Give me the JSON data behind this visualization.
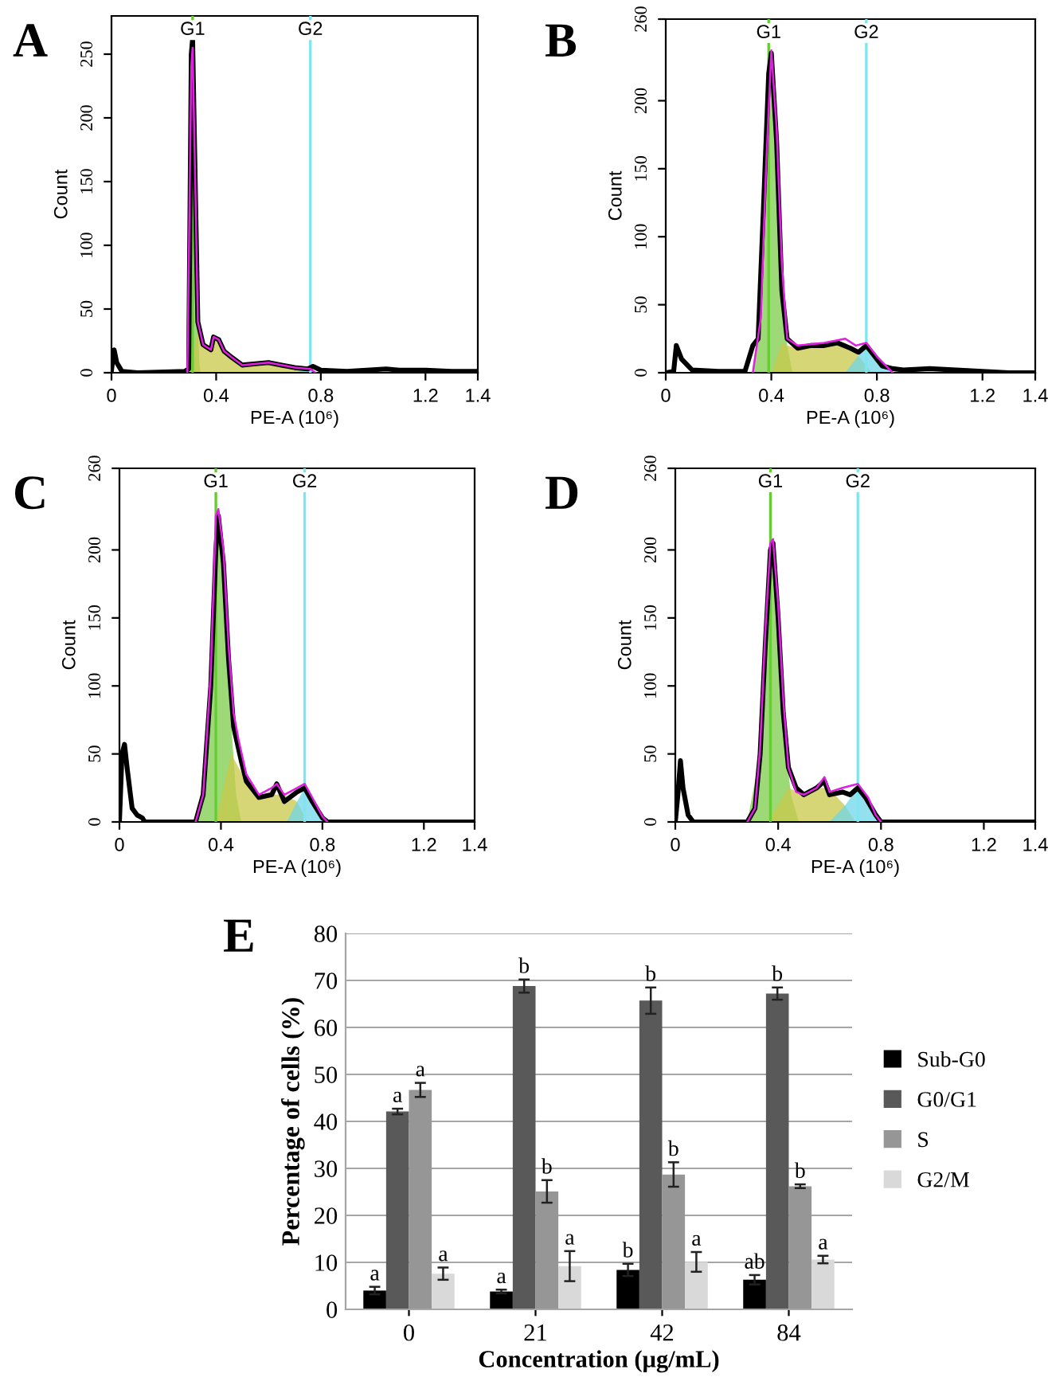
{
  "chart_data": [
    {
      "type": "line",
      "title": "A",
      "xlabel": "PE-A (10⁶)",
      "ylabel": "Count",
      "xlim": [
        0,
        1.4
      ],
      "ylim": [
        0,
        280
      ],
      "xticks": [
        0,
        0.4,
        0.8,
        1.2,
        1.4
      ],
      "yticks": [
        0,
        50,
        100,
        150,
        200,
        250
      ],
      "ref_lines": [
        {
          "axis": "x",
          "value": 0.31,
          "label": "G1",
          "color": "#66cc33"
        },
        {
          "axis": "x",
          "value": 0.76,
          "label": "G2",
          "color": "#7fe5f0"
        }
      ],
      "series": [
        {
          "type": "area",
          "color": "#7ccc4a",
          "x": [
            0.295,
            0.305,
            0.31,
            0.32,
            0.335,
            0.34
          ],
          "values": [
            0,
            200,
            260,
            120,
            10,
            0
          ]
        },
        {
          "type": "area",
          "color": "#c8c84a",
          "x": [
            0.3,
            0.33,
            0.35,
            0.38,
            0.39,
            0.41,
            0.43,
            0.46,
            0.5,
            0.6,
            0.7,
            0.75,
            0.76
          ],
          "values": [
            0,
            35,
            22,
            18,
            28,
            26,
            17,
            12,
            6,
            8,
            4,
            3,
            0
          ]
        },
        {
          "type": "area",
          "color": "#6fd6e8",
          "x": [
            0.7,
            0.75,
            0.78,
            0.8
          ],
          "values": [
            0,
            3,
            1,
            0
          ]
        },
        {
          "type": "line",
          "color": "#e020e0",
          "x": [
            0.29,
            0.305,
            0.31,
            0.32,
            0.33,
            0.35,
            0.38,
            0.39,
            0.41,
            0.43,
            0.46,
            0.5,
            0.6,
            0.7,
            0.76,
            0.78
          ],
          "values": [
            0,
            240,
            255,
            150,
            40,
            22,
            18,
            28,
            26,
            17,
            12,
            6,
            8,
            4,
            3,
            0
          ]
        },
        {
          "type": "line",
          "color": "#000000",
          "x": [
            0,
            0.01,
            0.02,
            0.04,
            0.1,
            0.28,
            0.295,
            0.305,
            0.31,
            0.32,
            0.33,
            0.35,
            0.38,
            0.39,
            0.41,
            0.43,
            0.46,
            0.5,
            0.55,
            0.6,
            0.65,
            0.7,
            0.75,
            0.77,
            0.8,
            0.9,
            1.05,
            1.1,
            1.2,
            1.3,
            1.4
          ],
          "values": [
            2,
            18,
            8,
            1,
            0,
            1,
            3,
            250,
            262,
            150,
            40,
            22,
            18,
            28,
            26,
            17,
            12,
            6,
            7,
            8,
            6,
            4,
            3,
            5,
            2,
            1,
            3,
            2,
            2,
            1,
            1
          ]
        }
      ]
    },
    {
      "type": "line",
      "title": "B",
      "xlabel": "PE-A (10⁶)",
      "ylabel": "Count",
      "xlim": [
        0,
        1.4
      ],
      "ylim": [
        0,
        260
      ],
      "xticks": [
        0,
        0.4,
        0.8,
        1.2,
        1.4
      ],
      "yticks": [
        0,
        50,
        100,
        150,
        200,
        260
      ],
      "ref_lines": [
        {
          "axis": "x",
          "value": 0.39,
          "label": "G1",
          "color": "#66cc33"
        },
        {
          "axis": "x",
          "value": 0.76,
          "label": "G2",
          "color": "#7fe5f0"
        }
      ],
      "series": [
        {
          "type": "area",
          "color": "#7ccc4a",
          "x": [
            0.33,
            0.36,
            0.38,
            0.4,
            0.42,
            0.44,
            0.46,
            0.48
          ],
          "values": [
            0,
            40,
            150,
            235,
            170,
            70,
            20,
            0
          ]
        },
        {
          "type": "area",
          "color": "#c8c84a",
          "x": [
            0.4,
            0.44,
            0.46,
            0.5,
            0.6,
            0.68,
            0.72,
            0.76,
            0.78
          ],
          "values": [
            0,
            22,
            20,
            18,
            20,
            22,
            15,
            5,
            0
          ]
        },
        {
          "type": "area",
          "color": "#6fd6e8",
          "x": [
            0.68,
            0.72,
            0.76,
            0.8,
            0.84,
            0.86
          ],
          "values": [
            0,
            10,
            20,
            10,
            3,
            0
          ]
        },
        {
          "type": "line",
          "color": "#e020e0",
          "x": [
            0.33,
            0.36,
            0.38,
            0.4,
            0.42,
            0.44,
            0.46,
            0.5,
            0.6,
            0.68,
            0.72,
            0.76,
            0.8,
            0.84,
            0.86
          ],
          "values": [
            0,
            40,
            150,
            237,
            180,
            80,
            25,
            20,
            22,
            25,
            20,
            22,
            12,
            4,
            0
          ]
        },
        {
          "type": "line",
          "color": "#000000",
          "x": [
            0,
            0.03,
            0.04,
            0.06,
            0.1,
            0.2,
            0.3,
            0.33,
            0.35,
            0.37,
            0.39,
            0.4,
            0.42,
            0.44,
            0.46,
            0.5,
            0.55,
            0.6,
            0.65,
            0.7,
            0.73,
            0.76,
            0.78,
            0.82,
            0.86,
            0.9,
            1.0,
            1.1,
            1.2,
            1.3,
            1.4
          ],
          "values": [
            0,
            1,
            20,
            10,
            2,
            1,
            1,
            20,
            25,
            120,
            220,
            235,
            170,
            60,
            25,
            18,
            20,
            20,
            22,
            18,
            15,
            20,
            15,
            5,
            3,
            2,
            3,
            2,
            1,
            0,
            0
          ]
        }
      ]
    },
    {
      "type": "line",
      "title": "C",
      "xlabel": "PE-A (10⁶)",
      "ylabel": "Count",
      "xlim": [
        0,
        1.4
      ],
      "ylim": [
        0,
        260
      ],
      "xticks": [
        0,
        0.4,
        0.8,
        1.2,
        1.4
      ],
      "yticks": [
        0,
        50,
        100,
        150,
        200,
        260
      ],
      "ref_lines": [
        {
          "axis": "x",
          "value": 0.38,
          "label": "G1",
          "color": "#66cc33"
        },
        {
          "axis": "x",
          "value": 0.73,
          "label": "G2",
          "color": "#7fe5f0"
        }
      ],
      "series": [
        {
          "type": "area",
          "color": "#7ccc4a",
          "x": [
            0.3,
            0.34,
            0.37,
            0.39,
            0.41,
            0.43,
            0.46,
            0.48
          ],
          "values": [
            0,
            30,
            150,
            225,
            190,
            100,
            20,
            0
          ]
        },
        {
          "type": "area",
          "color": "#c8c84a",
          "x": [
            0.38,
            0.44,
            0.47,
            0.5,
            0.55,
            0.6,
            0.65,
            0.7,
            0.74
          ],
          "values": [
            0,
            50,
            40,
            30,
            18,
            20,
            20,
            15,
            0
          ]
        },
        {
          "type": "area",
          "color": "#6fd6e8",
          "x": [
            0.66,
            0.7,
            0.73,
            0.76,
            0.8,
            0.82
          ],
          "values": [
            0,
            15,
            25,
            18,
            5,
            0
          ]
        },
        {
          "type": "line",
          "color": "#e020e0",
          "x": [
            0.3,
            0.33,
            0.36,
            0.38,
            0.39,
            0.41,
            0.43,
            0.45,
            0.47,
            0.5,
            0.55,
            0.6,
            0.62,
            0.65,
            0.7,
            0.73,
            0.76,
            0.8,
            0.82
          ],
          "values": [
            0,
            20,
            110,
            225,
            230,
            200,
            130,
            80,
            60,
            35,
            20,
            25,
            28,
            20,
            25,
            28,
            18,
            4,
            0
          ]
        },
        {
          "type": "line",
          "color": "#000000",
          "x": [
            0,
            0.01,
            0.02,
            0.03,
            0.05,
            0.07,
            0.09,
            0.1,
            0.3,
            0.33,
            0.36,
            0.38,
            0.39,
            0.41,
            0.43,
            0.45,
            0.48,
            0.5,
            0.55,
            0.6,
            0.62,
            0.65,
            0.7,
            0.73,
            0.76,
            0.8,
            0.82,
            1.4
          ],
          "values": [
            0,
            50,
            57,
            40,
            10,
            5,
            3,
            0,
            0,
            20,
            100,
            200,
            225,
            190,
            120,
            70,
            45,
            30,
            18,
            20,
            28,
            15,
            22,
            25,
            15,
            3,
            0,
            0
          ]
        }
      ]
    },
    {
      "type": "line",
      "title": "D",
      "xlabel": "PE-A (10⁶)",
      "ylabel": "Count",
      "xlim": [
        0,
        1.4
      ],
      "ylim": [
        0,
        260
      ],
      "xticks": [
        0,
        0.4,
        0.8,
        1.2,
        1.4
      ],
      "yticks": [
        0,
        50,
        100,
        150,
        200,
        260
      ],
      "ref_lines": [
        {
          "axis": "x",
          "value": 0.37,
          "label": "G1",
          "color": "#66cc33"
        },
        {
          "axis": "x",
          "value": 0.71,
          "label": "G2",
          "color": "#7fe5f0"
        }
      ],
      "series": [
        {
          "type": "area",
          "color": "#7ccc4a",
          "x": [
            0.28,
            0.33,
            0.35,
            0.37,
            0.38,
            0.4,
            0.42,
            0.45,
            0.48
          ],
          "values": [
            0,
            50,
            130,
            200,
            205,
            150,
            70,
            20,
            0
          ]
        },
        {
          "type": "area",
          "color": "#c8c84a",
          "x": [
            0.36,
            0.44,
            0.5,
            0.55,
            0.58,
            0.62,
            0.66,
            0.7
          ],
          "values": [
            0,
            25,
            20,
            25,
            25,
            20,
            12,
            0
          ]
        },
        {
          "type": "area",
          "color": "#6fd6e8",
          "x": [
            0.6,
            0.66,
            0.71,
            0.74,
            0.78,
            0.8
          ],
          "values": [
            0,
            12,
            25,
            18,
            5,
            0
          ]
        },
        {
          "type": "line",
          "color": "#e020e0",
          "x": [
            0.28,
            0.31,
            0.33,
            0.35,
            0.37,
            0.38,
            0.4,
            0.42,
            0.44,
            0.47,
            0.5,
            0.55,
            0.58,
            0.6,
            0.65,
            0.71,
            0.75,
            0.78,
            0.8
          ],
          "values": [
            0,
            10,
            55,
            140,
            205,
            208,
            160,
            90,
            40,
            22,
            20,
            25,
            33,
            22,
            25,
            28,
            18,
            5,
            0
          ]
        },
        {
          "type": "line",
          "color": "#000000",
          "x": [
            0,
            0.01,
            0.02,
            0.03,
            0.05,
            0.07,
            0.28,
            0.31,
            0.33,
            0.35,
            0.37,
            0.38,
            0.4,
            0.42,
            0.44,
            0.47,
            0.5,
            0.55,
            0.58,
            0.6,
            0.65,
            0.68,
            0.71,
            0.74,
            0.78,
            0.8,
            1.4
          ],
          "values": [
            0,
            20,
            45,
            25,
            5,
            0,
            0,
            10,
            50,
            130,
            200,
            205,
            150,
            80,
            40,
            25,
            20,
            25,
            30,
            20,
            22,
            20,
            25,
            18,
            5,
            0,
            0
          ]
        }
      ]
    },
    {
      "type": "bar",
      "title": "E",
      "xlabel": "Concentration (μg/mL)",
      "ylabel": "Percentage of cells (%)",
      "categories": [
        "0",
        "21",
        "42",
        "84"
      ],
      "ylim": [
        0,
        80
      ],
      "yticks": [
        0,
        10,
        20,
        30,
        40,
        50,
        60,
        70,
        80
      ],
      "grid": "y",
      "legend": "right",
      "series": [
        {
          "name": "Sub-G0",
          "color": "#000000",
          "values": [
            4.0,
            3.8,
            8.4,
            6.3
          ],
          "errors": [
            0.8,
            0.4,
            1.3,
            1.0
          ],
          "value_labels": [
            "a",
            "a",
            "b",
            "ab"
          ]
        },
        {
          "name": "G0/G1",
          "color": "#595959",
          "values": [
            42.1,
            68.8,
            65.7,
            67.2
          ],
          "errors": [
            0.6,
            1.4,
            2.8,
            1.3
          ],
          "value_labels": [
            "a",
            "b",
            "b",
            "b"
          ]
        },
        {
          "name": "S",
          "color": "#969696",
          "values": [
            46.7,
            25.1,
            28.7,
            26.2
          ],
          "errors": [
            1.5,
            2.4,
            2.6,
            0.4
          ],
          "value_labels": [
            "a",
            "b",
            "b",
            "b"
          ]
        },
        {
          "name": "G2/M",
          "color": "#d9d9d9",
          "values": [
            7.6,
            9.2,
            10.1,
            10.6
          ],
          "errors": [
            1.3,
            3.2,
            2.1,
            0.8
          ],
          "value_labels": [
            "a",
            "a",
            "a",
            "a"
          ]
        }
      ]
    }
  ]
}
